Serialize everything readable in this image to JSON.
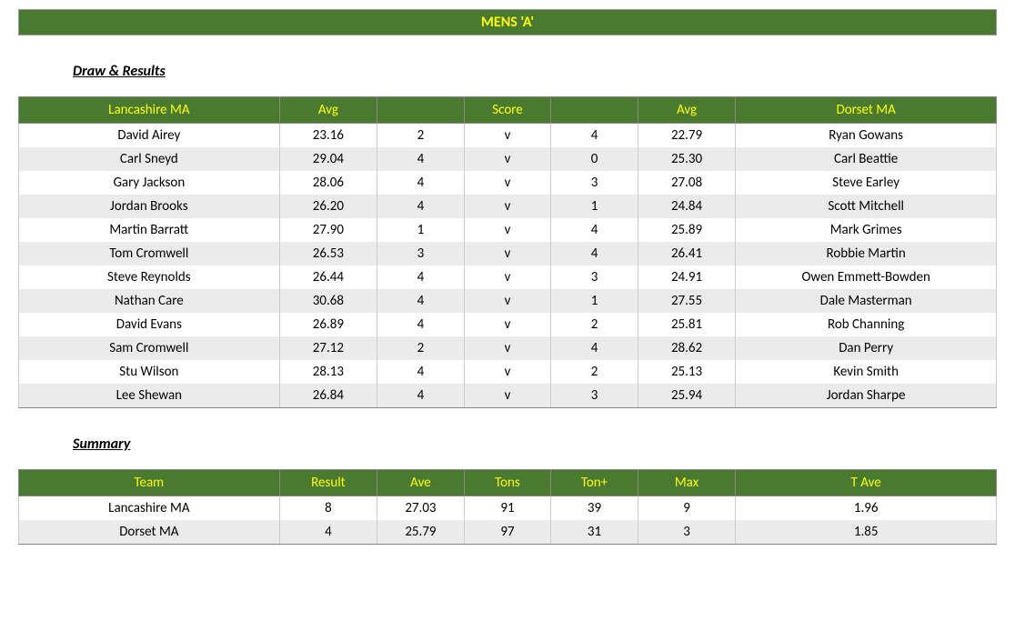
{
  "title": "MENS 'A'",
  "drawResultsHeading": "Draw & Results",
  "summaryHeading": "Summary",
  "resultsHeaders": {
    "teamA": "Lancashire MA",
    "avg1": "Avg",
    "score": "Score",
    "avg2": "Avg",
    "teamB": "Dorset MA"
  },
  "results": [
    {
      "playerA": "David Airey",
      "avgA": "23.16",
      "scoreA": "2",
      "v": "v",
      "scoreB": "4",
      "avgB": "22.79",
      "playerB": "Ryan Gowans"
    },
    {
      "playerA": "Carl Sneyd",
      "avgA": "29.04",
      "scoreA": "4",
      "v": "v",
      "scoreB": "0",
      "avgB": "25.30",
      "playerB": "Carl Beattie"
    },
    {
      "playerA": "Gary Jackson",
      "avgA": "28.06",
      "scoreA": "4",
      "v": "v",
      "scoreB": "3",
      "avgB": "27.08",
      "playerB": "Steve Earley"
    },
    {
      "playerA": "Jordan Brooks",
      "avgA": "26.20",
      "scoreA": "4",
      "v": "v",
      "scoreB": "1",
      "avgB": "24.84",
      "playerB": "Scott Mitchell"
    },
    {
      "playerA": "Martin Barratt",
      "avgA": "27.90",
      "scoreA": "1",
      "v": "v",
      "scoreB": "4",
      "avgB": "25.89",
      "playerB": "Mark Grimes"
    },
    {
      "playerA": "Tom Cromwell",
      "avgA": "26.53",
      "scoreA": "3",
      "v": "v",
      "scoreB": "4",
      "avgB": "26.41",
      "playerB": "Robbie Martin"
    },
    {
      "playerA": "Steve Reynolds",
      "avgA": "26.44",
      "scoreA": "4",
      "v": "v",
      "scoreB": "3",
      "avgB": "24.91",
      "playerB": "Owen Emmett-Bowden"
    },
    {
      "playerA": "Nathan Care",
      "avgA": "30.68",
      "scoreA": "4",
      "v": "v",
      "scoreB": "1",
      "avgB": "27.55",
      "playerB": "Dale Masterman"
    },
    {
      "playerA": "David Evans",
      "avgA": "26.89",
      "scoreA": "4",
      "v": "v",
      "scoreB": "2",
      "avgB": "25.81",
      "playerB": "Rob Channing"
    },
    {
      "playerA": "Sam Cromwell",
      "avgA": "27.12",
      "scoreA": "2",
      "v": "v",
      "scoreB": "4",
      "avgB": "28.62",
      "playerB": "Dan Perry"
    },
    {
      "playerA": "Stu Wilson",
      "avgA": "28.13",
      "scoreA": "4",
      "v": "v",
      "scoreB": "2",
      "avgB": "25.13",
      "playerB": "Kevin Smith"
    },
    {
      "playerA": "Lee Shewan",
      "avgA": "26.84",
      "scoreA": "4",
      "v": "v",
      "scoreB": "3",
      "avgB": "25.94",
      "playerB": "Jordan Sharpe"
    }
  ],
  "summaryHeaders": {
    "team": "Team",
    "result": "Result",
    "ave": "Ave",
    "tons": "Tons",
    "tonp": "Ton+",
    "max": "Max",
    "tave": "T Ave"
  },
  "summary": [
    {
      "team": "Lancashire MA",
      "result": "8",
      "ave": "27.03",
      "tons": "91",
      "tonp": "39",
      "max": "9",
      "tave": "1.96"
    },
    {
      "team": "Dorset MA",
      "result": "4",
      "ave": "25.79",
      "tons": "97",
      "tonp": "31",
      "max": "3",
      "tave": "1.85"
    }
  ]
}
